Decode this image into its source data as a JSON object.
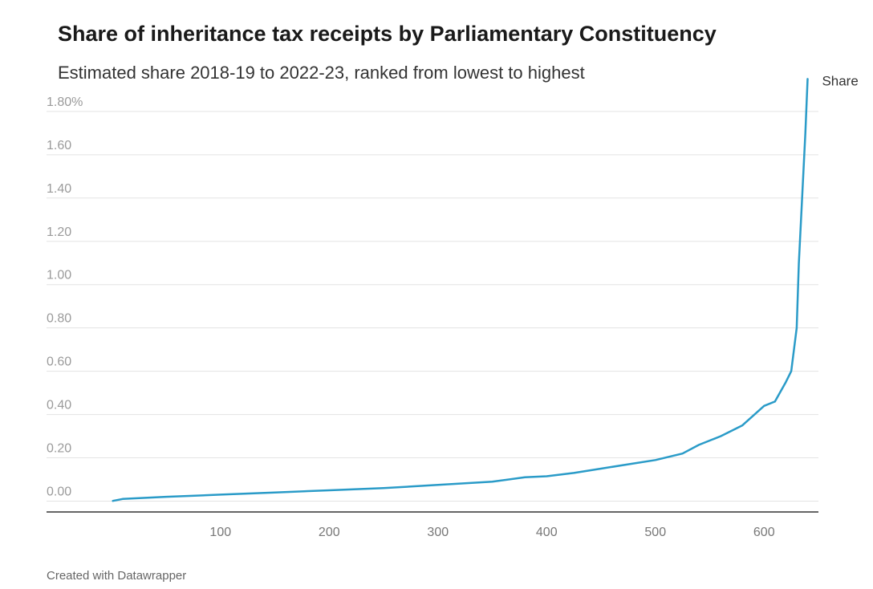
{
  "title": "Share of inheritance tax receipts by Parliamentary Constituency",
  "subtitle": "Estimated share 2018-19 to 2022-23, ranked from lowest to highest",
  "footer": "Created with Datawrapper",
  "colors": {
    "line": "#2a9bc8",
    "grid": "#e3e3e3",
    "axis": "#333333"
  },
  "chart_data": {
    "type": "line",
    "title": "Share of inheritance tax receipts by Parliamentary Constituency",
    "subtitle": "Estimated share 2018-19 to 2022-23, ranked from lowest to highest",
    "xlabel": "",
    "ylabel": "",
    "xlim": [
      -60,
      650
    ],
    "ylim": [
      -0.05,
      1.87
    ],
    "grid": "horizontal",
    "x_ticks": [
      100,
      200,
      300,
      400,
      500,
      600
    ],
    "x_tick_labels": [
      "100",
      "200",
      "300",
      "400",
      "500",
      "600"
    ],
    "y_ticks": [
      0,
      0.2,
      0.4,
      0.6,
      0.8,
      1.0,
      1.2,
      1.4,
      1.6,
      1.8
    ],
    "y_tick_labels": [
      "0.00",
      "0.20",
      "0.40",
      "0.60",
      "0.80",
      "1.00",
      "1.20",
      "1.40",
      "1.60",
      "1.80%"
    ],
    "series": [
      {
        "name": "Share",
        "x": [
          1,
          10,
          50,
          100,
          150,
          200,
          250,
          300,
          350,
          380,
          400,
          425,
          450,
          475,
          500,
          525,
          540,
          560,
          580,
          600,
          610,
          620,
          625,
          630,
          632,
          634,
          636,
          638,
          640
        ],
        "y": [
          0.001,
          0.01,
          0.02,
          0.03,
          0.04,
          0.05,
          0.06,
          0.075,
          0.09,
          0.11,
          0.115,
          0.13,
          0.15,
          0.17,
          0.19,
          0.22,
          0.26,
          0.3,
          0.35,
          0.44,
          0.46,
          0.55,
          0.6,
          0.8,
          1.1,
          1.3,
          1.5,
          1.7,
          1.95
        ]
      }
    ]
  }
}
